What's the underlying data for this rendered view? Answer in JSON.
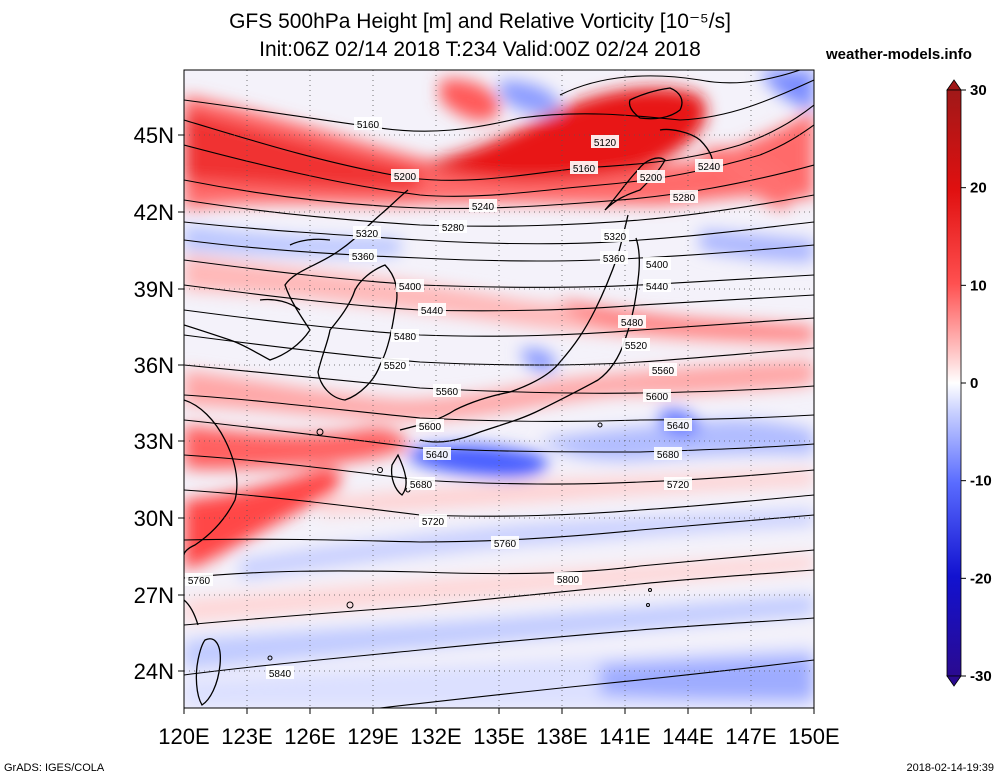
{
  "title": {
    "line1": "GFS 500hPa Height [m] and Relative Vorticity [10⁻⁵/s]",
    "line2": "Init:06Z 02/14 2018 T:234 Valid:00Z 02/24 2018"
  },
  "site": "weather-models.info",
  "footer": {
    "left": "GrADS: IGES/COLA",
    "right": "2018-02-14-19:39"
  },
  "axes": {
    "lon_labels": [
      "120E",
      "123E",
      "126E",
      "129E",
      "132E",
      "135E",
      "138E",
      "141E",
      "144E",
      "147E",
      "150E"
    ],
    "lat_labels": [
      "24N",
      "27N",
      "30N",
      "33N",
      "36N",
      "39N",
      "42N",
      "45N"
    ]
  },
  "colorbar": {
    "tick_labels": [
      "30",
      "20",
      "10",
      "0",
      "-10",
      "-20",
      "-30"
    ],
    "colors": [
      "#a01818",
      "#e01010",
      "#ff4040",
      "#ff9a9a",
      "#ffffff",
      "#9aa8ff",
      "#4a5cff",
      "#1414d8",
      "#2a0a90"
    ]
  },
  "contour_labels": [
    "5120",
    "5160",
    "5160",
    "5200",
    "5200",
    "5240",
    "5240",
    "5280",
    "5280",
    "5320",
    "5320",
    "5360",
    "5360",
    "5400",
    "5400",
    "5440",
    "5440",
    "5480",
    "5480",
    "5520",
    "5520",
    "5560",
    "5560",
    "5600",
    "5600",
    "5640",
    "5640",
    "5680",
    "5680",
    "5720",
    "5720",
    "5760",
    "5760",
    "5800",
    "5840"
  ]
}
